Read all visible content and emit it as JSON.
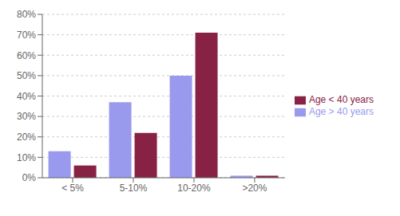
{
  "chart_data": {
    "type": "bar",
    "categories": [
      "< 5%",
      "5-10%",
      "10-20%",
      ">20%"
    ],
    "series": [
      {
        "name": "Age > 40 years",
        "color": "#9999EE",
        "values": [
          13,
          37,
          50,
          1
        ]
      },
      {
        "name": "Age < 40 years",
        "color": "#882244",
        "values": [
          6,
          22,
          71,
          1
        ]
      }
    ],
    "ylim": [
      0,
      80
    ],
    "yticks": [
      {
        "value": 0,
        "label": "0%"
      },
      {
        "value": 10,
        "label": "10%"
      },
      {
        "value": 20,
        "label": "20%"
      },
      {
        "value": 30,
        "label": "30%"
      },
      {
        "value": 40,
        "label": "40%"
      },
      {
        "value": 50,
        "label": "50%"
      },
      {
        "value": 60,
        "label": "60%"
      },
      {
        "value": 70,
        "label": "70%"
      },
      {
        "value": 80,
        "label": "80%"
      }
    ],
    "grid": true,
    "legend": "right"
  }
}
